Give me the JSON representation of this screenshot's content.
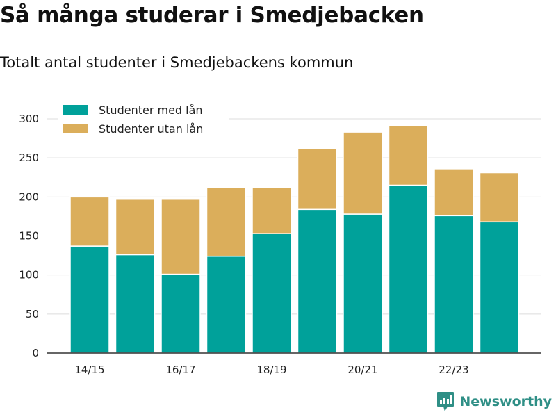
{
  "title": "Så många studerar i Smedjebacken",
  "subtitle": "Totalt antal studenter i Smedjebackens kommun",
  "brand": {
    "name": "Newsworthy",
    "icon": "newsworthy-logo-icon",
    "color": "#2f8f86"
  },
  "chart_data": {
    "type": "bar",
    "stacked": true,
    "categories": [
      "14/15",
      "15/16",
      "16/17",
      "17/18",
      "18/19",
      "19/20",
      "20/21",
      "21/22",
      "22/23",
      "23/24"
    ],
    "xtick_labels": [
      "14/15",
      "",
      "16/17",
      "",
      "18/19",
      "",
      "20/21",
      "",
      "22/23",
      ""
    ],
    "series": [
      {
        "name": "Studenter med lån",
        "color": "#00a19a",
        "values": [
          137,
          126,
          101,
          124,
          153,
          184,
          178,
          215,
          176,
          168
        ]
      },
      {
        "name": "Studenter utan lån",
        "color": "#dbae5b",
        "values": [
          63,
          71,
          96,
          88,
          59,
          78,
          105,
          76,
          60,
          63
        ]
      }
    ],
    "ylim": [
      0,
      300
    ],
    "yticks": [
      0,
      50,
      100,
      150,
      200,
      250,
      300
    ],
    "grid": true,
    "legend": "top-left",
    "xlabel": "",
    "ylabel": ""
  }
}
